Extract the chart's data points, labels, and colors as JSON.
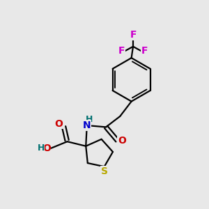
{
  "bg_color": "#e8e8e8",
  "bond_color": "#000000",
  "bond_lw": 1.6,
  "colors": {
    "N": "#0000cc",
    "O": "#cc0000",
    "S": "#b8a800",
    "F": "#cc00cc",
    "H": "#007070",
    "C": "#000000"
  },
  "fs": 9.5,
  "xlim": [
    0,
    10
  ],
  "ylim": [
    0,
    10
  ]
}
